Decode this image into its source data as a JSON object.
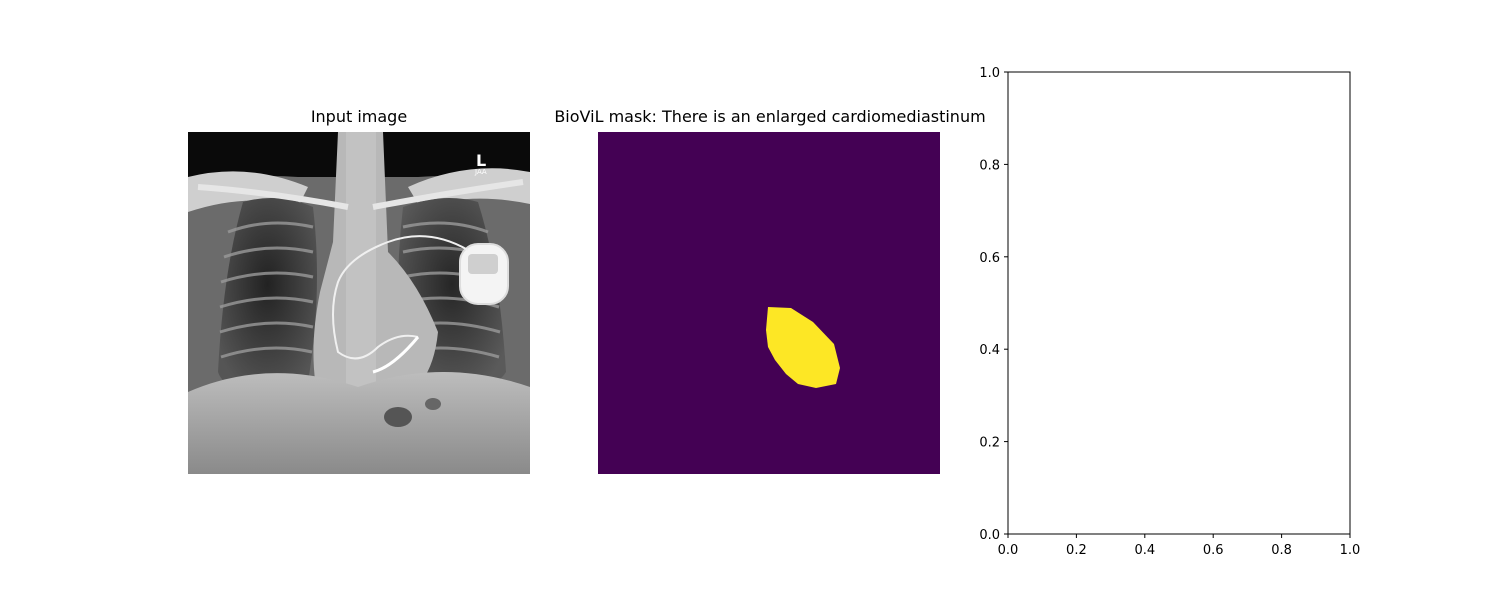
{
  "panels": {
    "input": {
      "title": "Input image"
    },
    "mask": {
      "title": "BioViL mask: There is an enlarged cardiomediastinum",
      "background_color": "#440154",
      "foreground_color": "#fde725"
    }
  },
  "chart_data": {
    "type": "scatter",
    "series": [],
    "xlim": [
      0.0,
      1.0
    ],
    "ylim": [
      0.0,
      1.0
    ],
    "xticks": [
      0.0,
      0.2,
      0.4,
      0.6,
      0.8,
      1.0
    ],
    "yticks": [
      0.0,
      0.2,
      0.4,
      0.6,
      0.8,
      1.0
    ],
    "xtick_labels": [
      "0.0",
      "0.2",
      "0.4",
      "0.6",
      "0.8",
      "1.0"
    ],
    "ytick_labels": [
      "0.0",
      "0.2",
      "0.4",
      "0.6",
      "0.8",
      "1.0"
    ],
    "grid": false,
    "title": "",
    "xlabel": "",
    "ylabel": ""
  }
}
